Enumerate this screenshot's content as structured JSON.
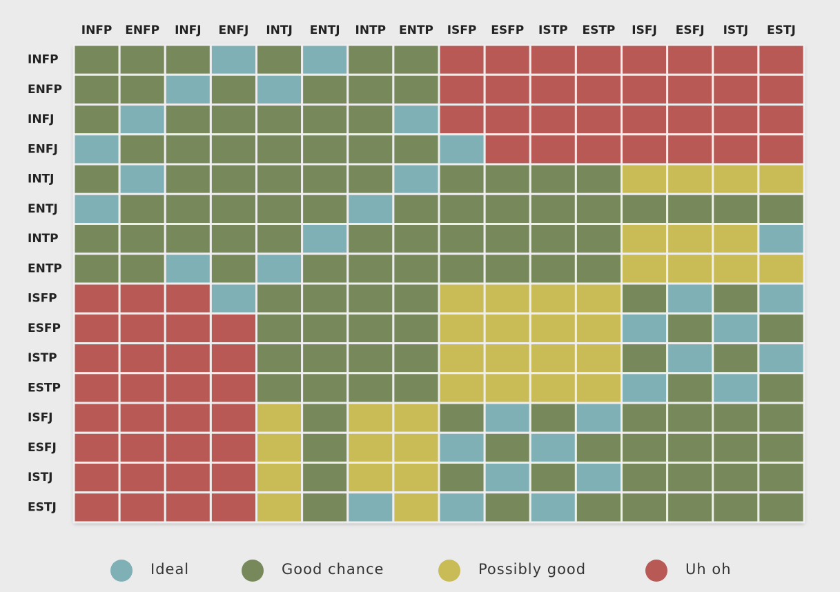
{
  "chart_data": {
    "type": "heatmap",
    "columns": [
      "INFP",
      "ENFP",
      "INFJ",
      "ENFJ",
      "INTJ",
      "ENTJ",
      "INTP",
      "ENTP",
      "ISFP",
      "ESFP",
      "ISTP",
      "ESTP",
      "ISFJ",
      "ESFJ",
      "ISTJ",
      "ESTJ"
    ],
    "rows": [
      "INFP",
      "ENFP",
      "INFJ",
      "ENFJ",
      "INTJ",
      "ENTJ",
      "INTP",
      "ENTP",
      "ISFP",
      "ESFP",
      "ISTP",
      "ESTP",
      "ISFJ",
      "ESFJ",
      "ISTJ",
      "ESTJ"
    ],
    "legend": [
      {
        "name": "Ideal",
        "color": "#7fb0b6"
      },
      {
        "name": "Good chance",
        "color": "#77895a"
      },
      {
        "name": "Possibly good",
        "color": "#c9bb56"
      },
      {
        "name": "Uh oh",
        "color": "#b85955"
      }
    ],
    "values": [
      [
        1,
        1,
        1,
        0,
        1,
        0,
        1,
        1,
        3,
        3,
        3,
        3,
        3,
        3,
        3,
        3
      ],
      [
        1,
        1,
        0,
        1,
        0,
        1,
        1,
        1,
        3,
        3,
        3,
        3,
        3,
        3,
        3,
        3
      ],
      [
        1,
        0,
        1,
        1,
        1,
        1,
        1,
        0,
        3,
        3,
        3,
        3,
        3,
        3,
        3,
        3
      ],
      [
        0,
        1,
        1,
        1,
        1,
        1,
        1,
        1,
        0,
        3,
        3,
        3,
        3,
        3,
        3,
        3
      ],
      [
        1,
        0,
        1,
        1,
        1,
        1,
        1,
        0,
        1,
        1,
        1,
        1,
        2,
        2,
        2,
        2
      ],
      [
        0,
        1,
        1,
        1,
        1,
        1,
        0,
        1,
        1,
        1,
        1,
        1,
        1,
        1,
        1,
        1
      ],
      [
        1,
        1,
        1,
        1,
        1,
        0,
        1,
        1,
        1,
        1,
        1,
        1,
        2,
        2,
        2,
        0
      ],
      [
        1,
        1,
        0,
        1,
        0,
        1,
        1,
        1,
        1,
        1,
        1,
        1,
        2,
        2,
        2,
        2
      ],
      [
        3,
        3,
        3,
        0,
        1,
        1,
        1,
        1,
        2,
        2,
        2,
        2,
        1,
        0,
        1,
        0
      ],
      [
        3,
        3,
        3,
        3,
        1,
        1,
        1,
        1,
        2,
        2,
        2,
        2,
        0,
        1,
        0,
        1
      ],
      [
        3,
        3,
        3,
        3,
        1,
        1,
        1,
        1,
        2,
        2,
        2,
        2,
        1,
        0,
        1,
        0
      ],
      [
        3,
        3,
        3,
        3,
        1,
        1,
        1,
        1,
        2,
        2,
        2,
        2,
        0,
        1,
        0,
        1
      ],
      [
        3,
        3,
        3,
        3,
        2,
        1,
        2,
        2,
        1,
        0,
        1,
        0,
        1,
        1,
        1,
        1
      ],
      [
        3,
        3,
        3,
        3,
        2,
        1,
        2,
        2,
        0,
        1,
        0,
        1,
        1,
        1,
        1,
        1
      ],
      [
        3,
        3,
        3,
        3,
        2,
        1,
        2,
        2,
        1,
        0,
        1,
        0,
        1,
        1,
        1,
        1
      ],
      [
        3,
        3,
        3,
        3,
        2,
        1,
        0,
        2,
        0,
        1,
        0,
        1,
        1,
        1,
        1,
        1
      ]
    ]
  }
}
